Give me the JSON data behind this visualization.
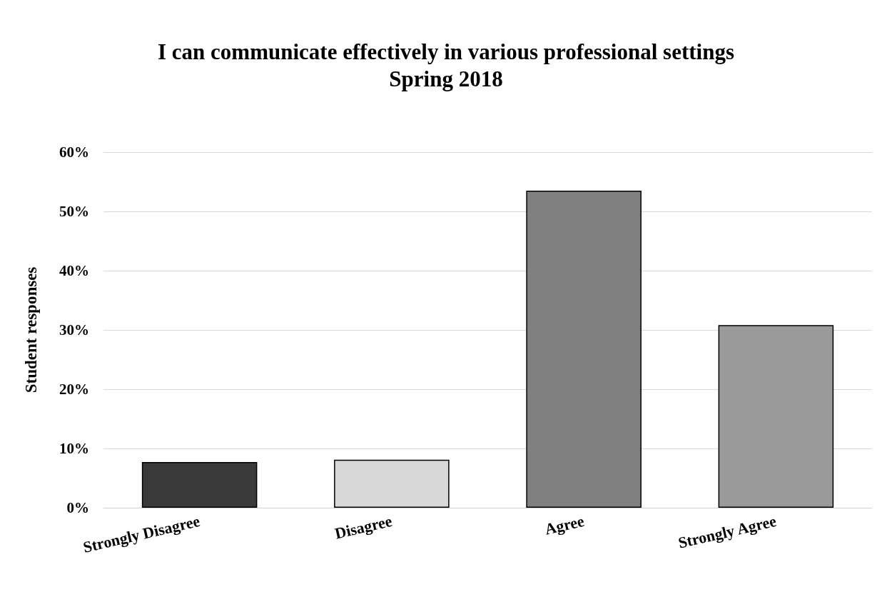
{
  "chart_data": {
    "type": "bar",
    "title": "I can communicate effectively in various professional settings\nSpring 2018",
    "ylabel": "Student responses",
    "categories": [
      "Strongly Disagree",
      "Disagree",
      "Agree",
      "Strongly Agree"
    ],
    "values": [
      7.7,
      8.1,
      53.5,
      30.8
    ],
    "colors": [
      "#3a3a3a",
      "#d8d8d8",
      "#808080",
      "#9a9a9a"
    ],
    "ylim": [
      0,
      60
    ],
    "yticks": [
      {
        "value": 0,
        "label": "0%"
      },
      {
        "value": 10,
        "label": "10%"
      },
      {
        "value": 20,
        "label": "20%"
      },
      {
        "value": 30,
        "label": "30%"
      },
      {
        "value": 40,
        "label": "40%"
      },
      {
        "value": 50,
        "label": "50%"
      },
      {
        "value": 60,
        "label": "60%"
      }
    ],
    "grid": "y"
  }
}
